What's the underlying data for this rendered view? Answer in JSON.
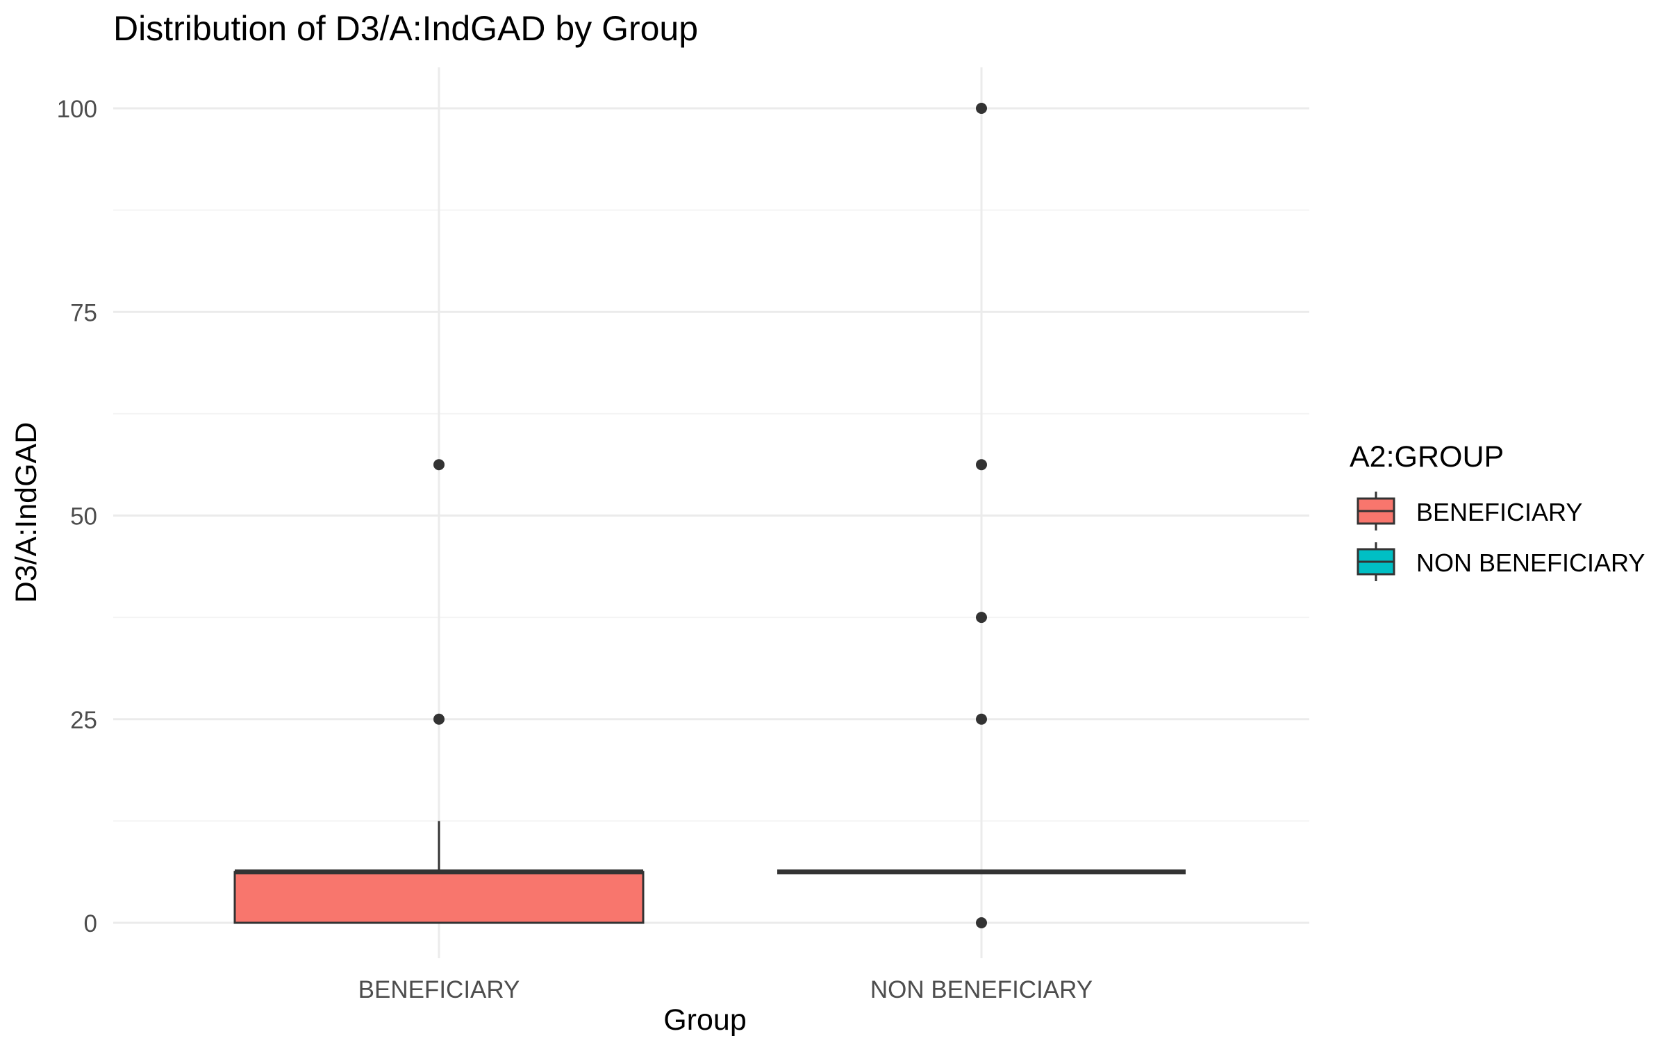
{
  "chart_data": {
    "type": "box",
    "title": "Distribution of D3/A:IndGAD by Group",
    "xlabel": "Group",
    "ylabel": "D3/A:IndGAD",
    "categories": [
      "BENEFICIARY",
      "NON BENEFICIARY"
    ],
    "y_ticks": [
      0,
      25,
      50,
      75,
      100
    ],
    "y_tick_labels": [
      "0",
      "25",
      "50",
      "75",
      "100"
    ],
    "ylim": [
      -5,
      105
    ],
    "grid": true,
    "legend": {
      "title": "A2:GROUP",
      "position": "right",
      "entries": [
        {
          "label": "BENEFICIARY",
          "color": "#F8766D"
        },
        {
          "label": "NON BENEFICIARY",
          "color": "#00BFC4"
        }
      ]
    },
    "series": [
      {
        "name": "BENEFICIARY",
        "color": "#F8766D",
        "min": 0,
        "q1": 0,
        "median": 6.25,
        "q3": 6.25,
        "max": 12.5,
        "outliers": [
          25,
          56.25
        ]
      },
      {
        "name": "NON BENEFICIARY",
        "color": "#00BFC4",
        "min": 6.25,
        "q1": 6.25,
        "median": 6.25,
        "q3": 6.25,
        "max": 6.25,
        "outliers": [
          0,
          25,
          37.5,
          56.25,
          100
        ]
      }
    ]
  },
  "colors": {
    "grid_major": "#EBEBEB",
    "grid_minor": "#F4F4F4",
    "box_line": "#333333",
    "point": "#333333",
    "text": "#000000",
    "tick_text": "#4D4D4D"
  }
}
